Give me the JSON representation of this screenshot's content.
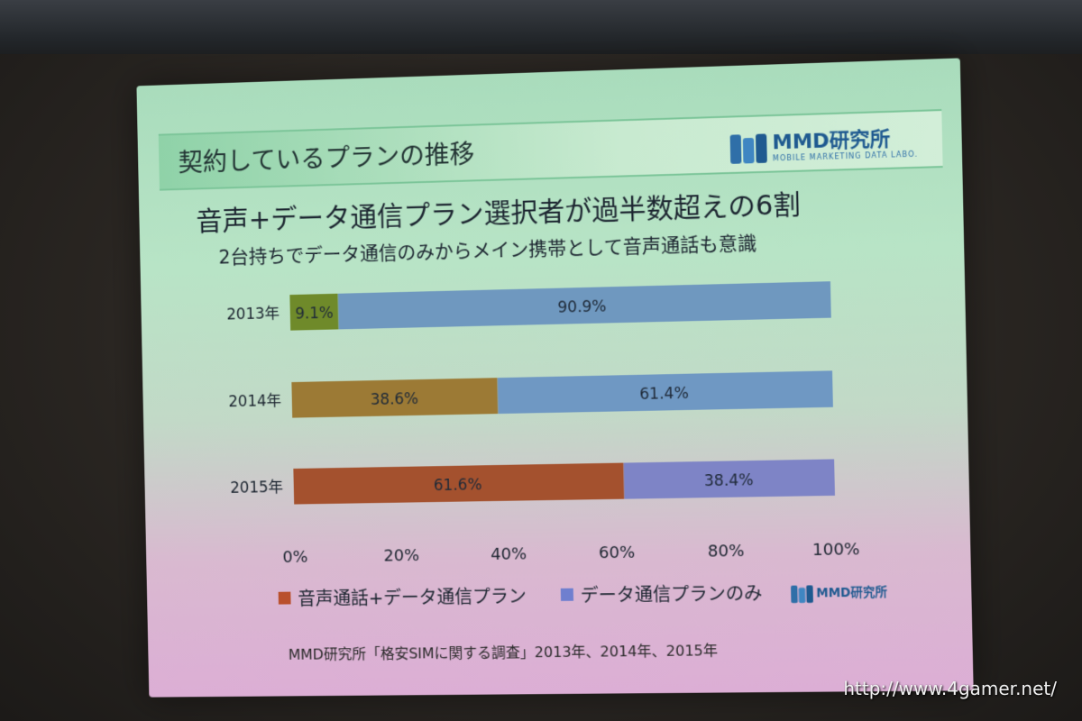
{
  "slide": {
    "title": "契約しているプランの推移",
    "headline": "音声+データ通信プラン選択者が過半数超えの6割",
    "subheadline": "2台持ちでデータ通信のみからメイン携帯として音声通話も意識",
    "logo_name": "MMD研究所",
    "logo_sub": "MOBILE MARKETING DATA LABO.",
    "source": "MMD研究所「格安SIMに関する調査」2013年、2014年、2015年"
  },
  "watermark": "http://www.4gamer.net/",
  "chart_data": {
    "type": "bar",
    "orientation": "horizontal",
    "stacked": true,
    "percent": true,
    "categories": [
      "2013年",
      "2014年",
      "2015年"
    ],
    "series": [
      {
        "name": "音声通話+データ通信プラン",
        "values": [
          9.1,
          38.6,
          61.6
        ],
        "labels": [
          "9.1%",
          "38.6%",
          "61.6%"
        ],
        "colors": [
          "#6f8a2a",
          "#9c7a35",
          "#a4512e"
        ]
      },
      {
        "name": "データ通信プランのみ",
        "values": [
          90.9,
          61.4,
          38.4
        ],
        "labels": [
          "90.9%",
          "61.4%",
          "38.4%"
        ],
        "colors": [
          "#6f98bf",
          "#6f98c3",
          "#7e84c6"
        ]
      }
    ],
    "xlim": [
      0,
      100
    ],
    "xticks": [
      "0%",
      "20%",
      "40%",
      "60%",
      "80%",
      "100%"
    ],
    "legend_colors": [
      "#b9502d",
      "#6f7fcf"
    ],
    "legend_position": "bottom",
    "grid": false
  }
}
